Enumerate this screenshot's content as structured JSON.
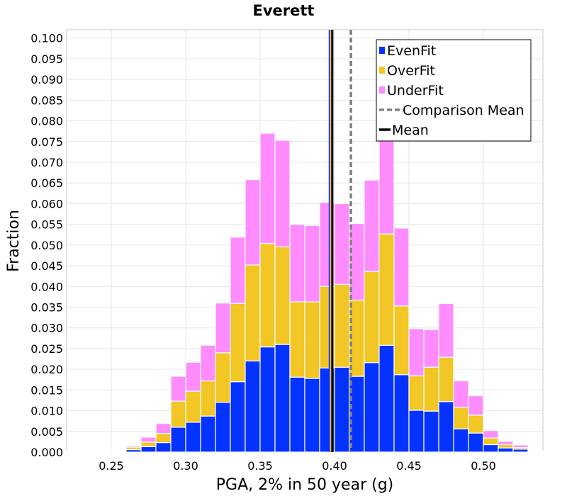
{
  "chart_data": {
    "type": "bar",
    "stacked": true,
    "title": "Everett",
    "xlabel": "PGA, 2% in 50 year (g)",
    "ylabel": "Fraction",
    "xlim": [
      0.22,
      0.54
    ],
    "ylim": [
      0,
      0.102
    ],
    "bin_width": 0.01,
    "x_ticks": [
      "0.25",
      "0.30",
      "0.35",
      "0.40",
      "0.45",
      "0.50"
    ],
    "x_tick_values": [
      0.25,
      0.3,
      0.35,
      0.4,
      0.45,
      0.5
    ],
    "y_ticks": [
      "0.000",
      "0.005",
      "0.010",
      "0.015",
      "0.020",
      "0.025",
      "0.030",
      "0.035",
      "0.040",
      "0.045",
      "0.050",
      "0.055",
      "0.060",
      "0.065",
      "0.070",
      "0.075",
      "0.080",
      "0.085",
      "0.090",
      "0.095",
      "0.100"
    ],
    "y_tick_values": [
      0.0,
      0.005,
      0.01,
      0.015,
      0.02,
      0.025,
      0.03,
      0.035,
      0.04,
      0.045,
      0.05,
      0.055,
      0.06,
      0.065,
      0.07,
      0.075,
      0.08,
      0.085,
      0.09,
      0.095,
      0.1
    ],
    "grid": true,
    "legend_position": "top-right",
    "bins": [
      0.225,
      0.235,
      0.245,
      0.255,
      0.265,
      0.275,
      0.285,
      0.295,
      0.305,
      0.315,
      0.325,
      0.335,
      0.345,
      0.355,
      0.365,
      0.375,
      0.385,
      0.395,
      0.405,
      0.415,
      0.425,
      0.435,
      0.445,
      0.455,
      0.465,
      0.475,
      0.485,
      0.495,
      0.505,
      0.515,
      0.525,
      0.535
    ],
    "series": [
      {
        "name": "EvenFit",
        "color": "#0433ff",
        "values": [
          0.0001,
          0.0001,
          0.0002,
          0.0002,
          0.0006,
          0.0013,
          0.0023,
          0.006,
          0.0072,
          0.0087,
          0.012,
          0.017,
          0.022,
          0.0254,
          0.026,
          0.0181,
          0.0178,
          0.0203,
          0.0205,
          0.0183,
          0.0216,
          0.0258,
          0.0187,
          0.0101,
          0.0099,
          0.0122,
          0.0056,
          0.0046,
          0.0018,
          0.001,
          0.0007,
          0.0001
        ]
      },
      {
        "name": "OverFit",
        "color": "#f2c624",
        "values": [
          0,
          0,
          0,
          0.0001,
          0.0006,
          0.0011,
          0.0022,
          0.0063,
          0.0075,
          0.0085,
          0.012,
          0.0189,
          0.0232,
          0.025,
          0.0236,
          0.0182,
          0.0185,
          0.0197,
          0.02,
          0.0184,
          0.022,
          0.0269,
          0.0166,
          0.0083,
          0.0106,
          0.0107,
          0.0052,
          0.0043,
          0.0016,
          0.0008,
          0.0004,
          0.0001
        ]
      },
      {
        "name": "UnderFit",
        "color": "#ff8cff",
        "values": [
          0.0001,
          0.0001,
          0.0001,
          0.0002,
          0.0003,
          0.0012,
          0.0024,
          0.006,
          0.007,
          0.0086,
          0.012,
          0.016,
          0.0206,
          0.0266,
          0.0257,
          0.0187,
          0.0184,
          0.0203,
          0.0195,
          0.0185,
          0.0221,
          0.0249,
          0.0188,
          0.0114,
          0.0091,
          0.013,
          0.0064,
          0.0047,
          0.0018,
          0.0008,
          0.0006,
          0.0001
        ]
      }
    ],
    "legend_entries": [
      "EvenFit",
      "OverFit",
      "UnderFit",
      "Comparison Mean",
      "Mean"
    ],
    "mean_lines": [
      {
        "name": "Mean",
        "series": "EvenFit",
        "x": 0.3968,
        "color": "#0433ff"
      },
      {
        "name": "Mean",
        "series": "OverFit",
        "x": 0.3976,
        "color": "#f2c624"
      },
      {
        "name": "Mean",
        "series": "UnderFit",
        "x": 0.3984,
        "color": "#ff8cff"
      },
      {
        "name": "Mean",
        "series": "Combined",
        "x": 0.3985,
        "color": "#000000"
      }
    ],
    "comparison_mean": {
      "name": "Comparison Mean",
      "x": 0.411,
      "color": "#808080",
      "style": "dashed"
    }
  }
}
